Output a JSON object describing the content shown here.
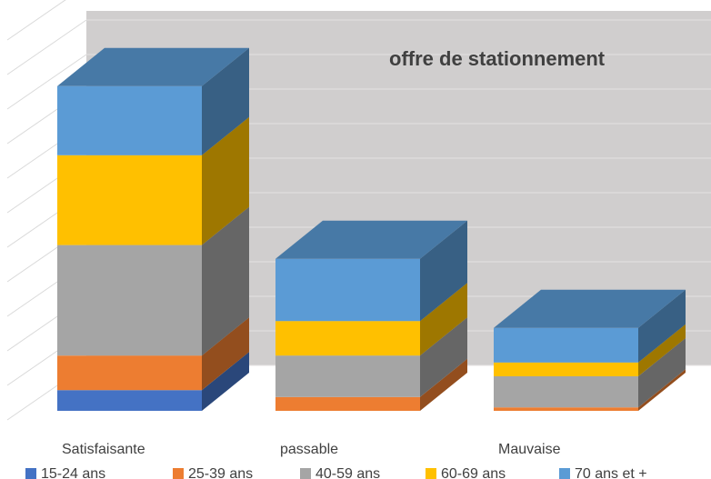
{
  "chart_data": {
    "type": "bar3d_stacked",
    "title": "offre de stationnement",
    "categories": [
      "Satisfaisante",
      "passable",
      "Mauvaise"
    ],
    "series": [
      {
        "name": "15-24 ans",
        "color": "#4472c4",
        "values": [
          3,
          0,
          0
        ]
      },
      {
        "name": "25-39 ans",
        "color": "#ed7d31",
        "values": [
          5,
          2,
          0.5
        ]
      },
      {
        "name": "40-59 ans",
        "color": "#a5a5a5",
        "values": [
          16,
          6,
          4.5
        ]
      },
      {
        "name": "60-69 ans",
        "color": "#ffc000",
        "values": [
          13,
          5,
          2
        ]
      },
      {
        "name": "70 ans et +",
        "color": "#5b9bd5",
        "values": [
          10,
          9,
          5
        ]
      }
    ],
    "ylim": [
      0,
      55
    ],
    "yticks": [
      0,
      5,
      10,
      15,
      20,
      25,
      30,
      35,
      40,
      45,
      50,
      55
    ],
    "grid": true
  }
}
